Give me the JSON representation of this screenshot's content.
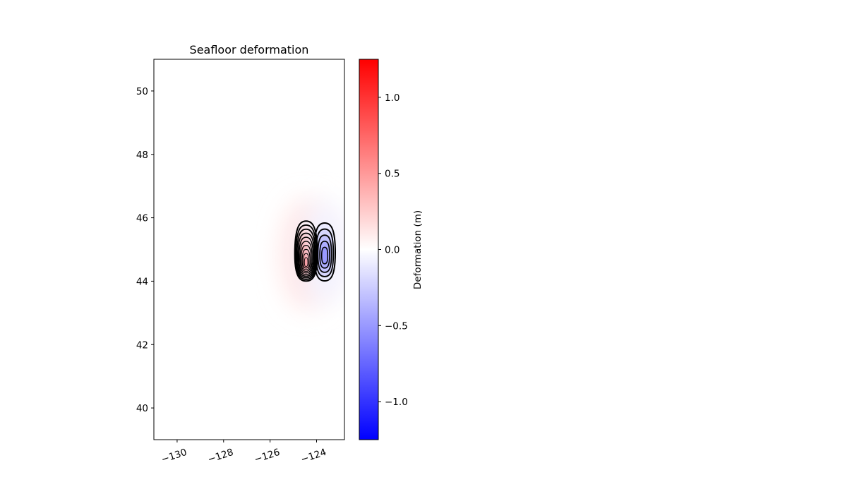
{
  "chart_data": {
    "type": "heatmap",
    "title": "Seafloor deformation",
    "xlabel": "",
    "ylabel": "",
    "xlim": [
      -131,
      -122.8
    ],
    "ylim": [
      39,
      51
    ],
    "x_ticks": [
      -130,
      -128,
      -126,
      -124
    ],
    "x_tick_labels": [
      "−130",
      "−128",
      "−126",
      "−124"
    ],
    "y_ticks": [
      40,
      42,
      44,
      46,
      48,
      50
    ],
    "y_tick_labels": [
      "40",
      "42",
      "44",
      "46",
      "48",
      "50"
    ],
    "grid": false,
    "colorbar": {
      "label": "Deformation (m)",
      "range": [
        -1.25,
        1.25
      ],
      "ticks": [
        -1.0,
        -0.5,
        0.0,
        0.5,
        1.0
      ],
      "tick_labels": [
        "−1.0",
        "−0.5",
        "0.0",
        "0.5",
        "1.0"
      ],
      "colormap": [
        "#0000ff",
        "#ffffff",
        "#ff0000"
      ]
    },
    "features": [
      {
        "name": "uplift",
        "sign": "positive",
        "center_lon": -124.45,
        "center_lat": 44.85,
        "peak": 1.1,
        "contour_levels": [
          0.1,
          0.2,
          0.3,
          0.4,
          0.5,
          0.6,
          0.7,
          0.8,
          0.9,
          1.0
        ]
      },
      {
        "name": "subsidence",
        "sign": "negative",
        "center_lon": -123.65,
        "center_lat": 44.9,
        "peak": -0.5,
        "contour_levels": [
          -0.1,
          -0.2,
          -0.3,
          -0.4,
          -0.5
        ]
      }
    ]
  }
}
